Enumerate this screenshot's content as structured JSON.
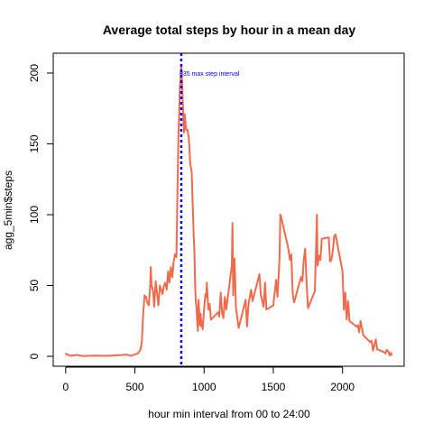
{
  "chart_data": {
    "type": "line",
    "title": "Average total steps by hour in a mean day",
    "xlabel": "hour min interval from 00 to 24:00",
    "ylabel": "agg_5min$steps",
    "xlim": [
      -90,
      2445
    ],
    "ylim": [
      -7,
      214
    ],
    "x_ticks": [
      0,
      500,
      1000,
      1500,
      2000
    ],
    "y_ticks": [
      0,
      50,
      100,
      150,
      200
    ],
    "x_tick_labels": [
      "0",
      "500",
      "1000",
      "1500",
      "2000"
    ],
    "y_tick_labels": [
      "0",
      "50",
      "100",
      "150",
      "200"
    ],
    "grid": false,
    "legend": "none",
    "series": [
      {
        "color": "#f06a4c",
        "x": [
          0,
          40,
          80,
          120,
          200,
          300,
          400,
          440,
          470,
          500,
          520,
          540,
          550,
          560,
          570,
          580,
          590,
          600,
          610,
          615,
          620,
          630,
          640,
          650,
          660,
          670,
          680,
          700,
          710,
          720,
          730,
          740,
          750,
          760,
          770,
          780,
          790,
          800,
          805,
          810,
          815,
          820,
          825,
          830,
          835,
          840,
          845,
          850,
          855,
          860,
          870,
          880,
          890,
          900,
          910,
          915,
          920,
          925,
          930,
          935,
          940,
          945,
          950,
          955,
          960,
          965,
          970,
          975,
          980,
          985,
          990,
          1000,
          1005,
          1010,
          1015,
          1020,
          1030,
          1040,
          1050,
          1100,
          1110,
          1120,
          1130,
          1140,
          1150,
          1160,
          1200,
          1205,
          1210,
          1215,
          1220,
          1230,
          1240,
          1250,
          1300,
          1310,
          1320,
          1330,
          1340,
          1350,
          1400,
          1410,
          1420,
          1430,
          1440,
          1450,
          1500,
          1510,
          1520,
          1530,
          1540,
          1545,
          1550,
          1555,
          1600,
          1610,
          1620,
          1630,
          1640,
          1650,
          1700,
          1710,
          1720,
          1730,
          1740,
          1750,
          1800,
          1810,
          1815,
          1820,
          1830,
          1840,
          1850,
          1900,
          1910,
          1920,
          1930,
          1940,
          1950,
          2000,
          2010,
          2020,
          2030,
          2040,
          2050,
          2100,
          2110,
          2120,
          2130,
          2140,
          2150,
          2200,
          2210,
          2220,
          2230,
          2240,
          2250,
          2300,
          2310,
          2320,
          2330,
          2340,
          2350,
          2355
        ],
        "y": [
          1.7,
          0.3,
          1.0,
          0.2,
          0.5,
          0.3,
          0.9,
          1.2,
          0.4,
          1.4,
          2.0,
          4.5,
          10.0,
          30.0,
          43.0,
          42.0,
          38.0,
          36.0,
          48.0,
          63.0,
          50.0,
          47.0,
          35.0,
          53.0,
          45.0,
          36.0,
          50.0,
          44.0,
          50.0,
          52.0,
          47.0,
          60.0,
          52.0,
          63.0,
          56.0,
          67.0,
          72.0,
          70.0,
          100.0,
          130.0,
          158.0,
          171.0,
          190.0,
          195.0,
          206.0,
          196.0,
          183.0,
          168.0,
          158.0,
          171.0,
          160.0,
          160.0,
          154.0,
          136.0,
          130.0,
          115.0,
          100.0,
          84.0,
          75.0,
          50.0,
          38.0,
          35.0,
          25.0,
          18.0,
          40.0,
          31.0,
          22.0,
          30.0,
          21.0,
          25.0,
          19.0,
          34.0,
          39.0,
          44.0,
          42.0,
          52.0,
          33.0,
          37.0,
          26.0,
          31.0,
          28.0,
          45.0,
          31.0,
          27.0,
          42.0,
          33.0,
          64.0,
          94.0,
          43.0,
          58.0,
          69.0,
          34.0,
          27.0,
          20.0,
          40.0,
          21.0,
          36.0,
          42.0,
          47.0,
          39.0,
          58.0,
          43.0,
          39.0,
          35.0,
          52.0,
          33.0,
          36.0,
          45.0,
          54.0,
          42.0,
          60.0,
          70.0,
          100.0,
          99.0,
          80.0,
          75.0,
          68.0,
          72.0,
          44.0,
          38.0,
          56.0,
          53.0,
          68.0,
          76.0,
          53.0,
          34.0,
          46.0,
          82.0,
          100.0,
          64.0,
          71.0,
          68.0,
          83.0,
          84.0,
          67.0,
          68.0,
          75.0,
          85.0,
          86.0,
          60.0,
          33.0,
          45.0,
          26.0,
          39.0,
          25.0,
          21.0,
          22.0,
          17.0,
          25.0,
          20.0,
          15.0,
          10.0,
          11.0,
          4.0,
          8.0,
          12.0,
          5.0,
          3.0,
          2.0,
          4.5,
          3.5,
          0.6,
          2.4,
          1.1
        ]
      }
    ],
    "max_marker": {
      "x": 835,
      "color": "#0000ff",
      "label": "835 max step interval",
      "label_y": 200
    }
  }
}
